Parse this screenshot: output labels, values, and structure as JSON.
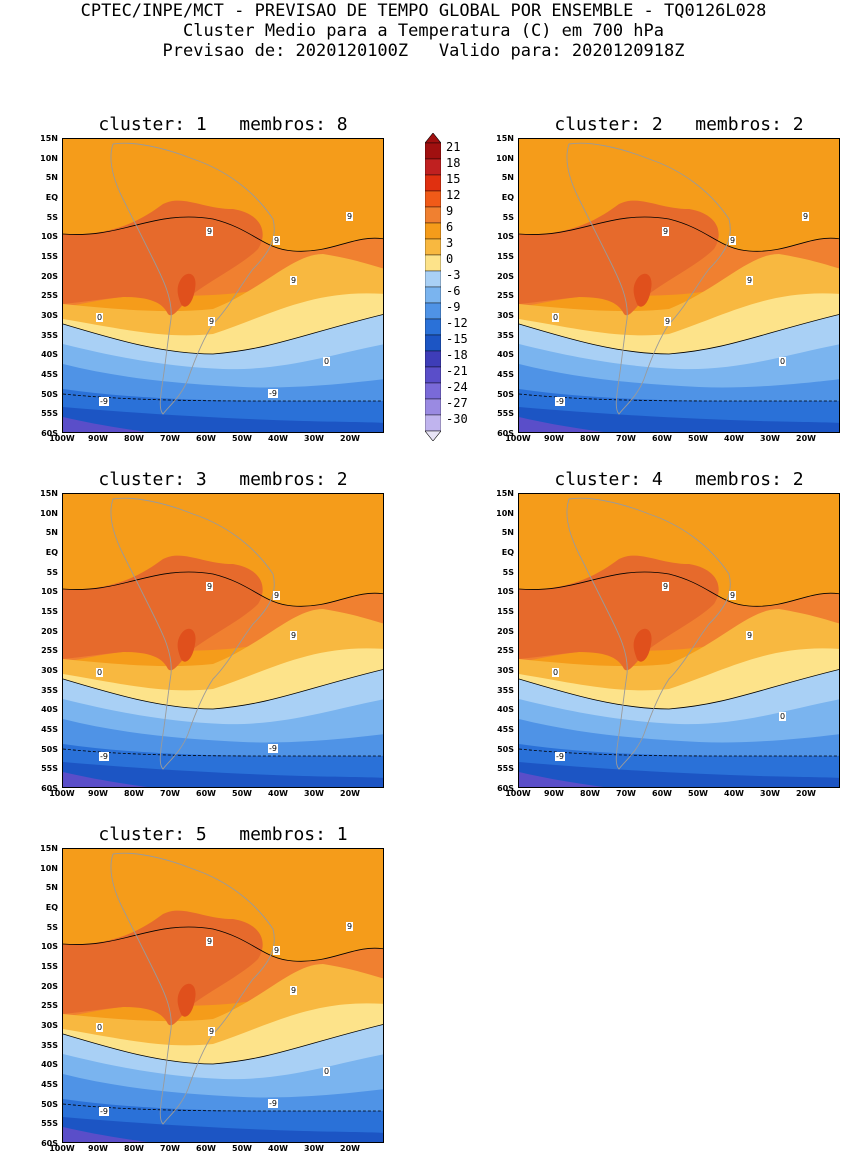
{
  "header": {
    "line1": "CPTEC/INPE/MCT - PREVISAO DE TEMPO GLOBAL POR ENSEMBLE - TQ0126L028",
    "line2": "Cluster Medio para a Temperatura (C) em 700 hPa",
    "line3": "Previsao de: 2020120100Z   Valido para: 2020120918Z"
  },
  "axes": {
    "lat_labels": [
      "15N",
      "10N",
      "5N",
      "EQ",
      "5S",
      "10S",
      "15S",
      "20S",
      "25S",
      "30S",
      "35S",
      "40S",
      "45S",
      "50S",
      "55S",
      "60S"
    ],
    "lon_labels": [
      "100W",
      "90W",
      "80W",
      "70W",
      "60W",
      "50W",
      "40W",
      "30W",
      "20W"
    ]
  },
  "colorbar": {
    "values": [
      "21",
      "18",
      "15",
      "12",
      "9",
      "6",
      "3",
      "0",
      "-3",
      "-6",
      "-9",
      "-12",
      "-15",
      "-18",
      "-21",
      "-24",
      "-27",
      "-30"
    ],
    "colors": [
      "#a01010",
      "#c02020",
      "#e03010",
      "#f05a18",
      "#f08030",
      "#f59c1a",
      "#f8b840",
      "#fde38a",
      "#a9d0f5",
      "#7ab4ef",
      "#4f93e6",
      "#2a71d8",
      "#1c55c4",
      "#3e3db8",
      "#5a4ec9",
      "#7a6ad8",
      "#9a8ae2",
      "#c0b4ee"
    ]
  },
  "panels": [
    {
      "title": "cluster: 1   membros: 8",
      "labels": {
        "l0": "9",
        "l1": "9",
        "l2": "9",
        "l3": "9",
        "l4": "9",
        "l5": "0",
        "l6": "0",
        "l7": "-9",
        "l8": "-9"
      }
    },
    {
      "title": "cluster: 2   membros: 2",
      "labels": {
        "l0": "9",
        "l1": "9",
        "l2": "9",
        "l3": "9",
        "l4": "9",
        "l5": "0",
        "l6": "0",
        "l7": "-9",
        "l8": ""
      }
    },
    {
      "title": "cluster: 3   membros: 2",
      "labels": {
        "l0": "9",
        "l1": "9",
        "l2": "9",
        "l3": "",
        "l4": "",
        "l5": "0",
        "l6": "",
        "l7": "-9",
        "l8": "-9"
      }
    },
    {
      "title": "cluster: 4   membros: 2",
      "labels": {
        "l0": "9",
        "l1": "9",
        "l2": "9",
        "l3": "",
        "l4": "",
        "l5": "0",
        "l6": "0",
        "l7": "-9",
        "l8": ""
      }
    },
    {
      "title": "cluster: 5   membros: 1",
      "labels": {
        "l0": "9",
        "l1": "9",
        "l2": "9",
        "l3": "9",
        "l4": "9",
        "l5": "0",
        "l6": "0",
        "l7": "-9",
        "l8": "-9"
      }
    }
  ]
}
